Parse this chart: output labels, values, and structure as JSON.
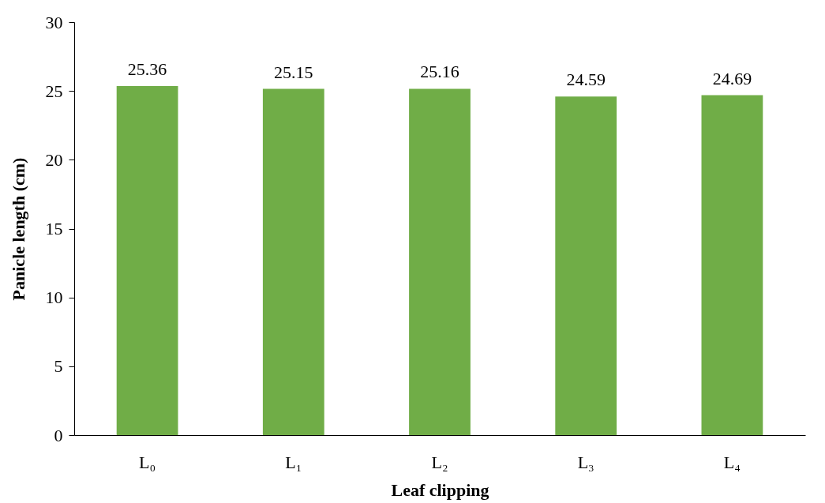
{
  "chart_data": {
    "type": "bar",
    "xlabel": "Leaf clipping",
    "ylabel": "Panicle length (cm)",
    "categories": [
      "L₀",
      "L₁",
      "L₂",
      "L₃",
      "L₄"
    ],
    "values": [
      25.36,
      25.15,
      25.16,
      24.59,
      24.69
    ],
    "color": "#70ad47",
    "ylim": [
      0,
      30
    ],
    "yticks": [
      0,
      5,
      10,
      15,
      20,
      25,
      30
    ],
    "grid": false,
    "data_labels": true
  }
}
